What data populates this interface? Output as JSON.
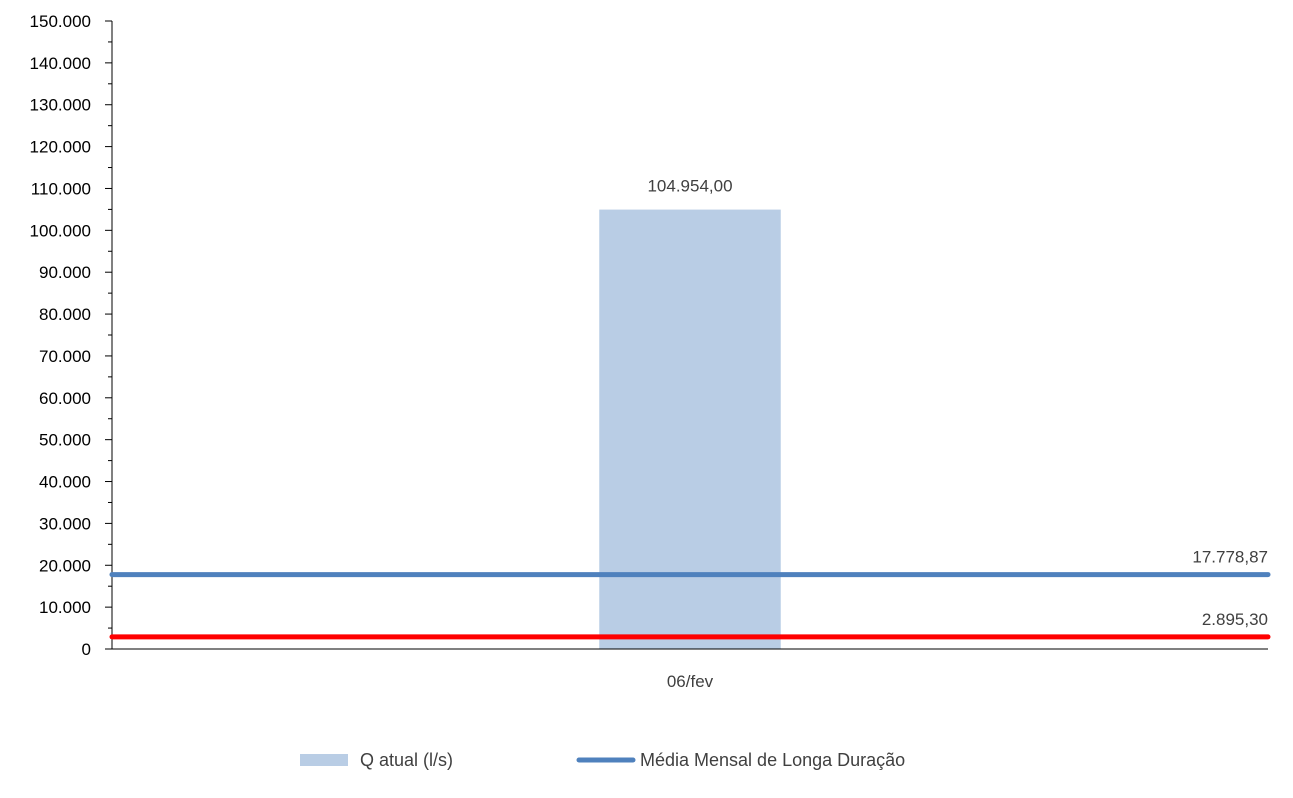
{
  "chart_data": {
    "type": "bar",
    "categories": [
      "06/fev"
    ],
    "ylim": [
      0,
      150000
    ],
    "ytick_step": 10000,
    "ytick_labels": [
      "0",
      "10.000",
      "20.000",
      "30.000",
      "40.000",
      "50.000",
      "60.000",
      "70.000",
      "80.000",
      "90.000",
      "100.000",
      "110.000",
      "120.000",
      "130.000",
      "140.000",
      "150.000"
    ],
    "grid": false,
    "legend_position": "bottom",
    "series": [
      {
        "name": "Q atual (l/s)",
        "kind": "bar",
        "values": [
          104954
        ],
        "value_labels": [
          "104.954,00"
        ],
        "color": "#b9cde5"
      },
      {
        "name": "Média Mensal de Longa Duração",
        "kind": "line",
        "value": 17778.87,
        "value_label": "17.778,87",
        "color": "#4f81bd"
      },
      {
        "kind": "line",
        "value": 2895.3,
        "value_label": "2.895,30",
        "color": "#ff0000"
      }
    ]
  }
}
